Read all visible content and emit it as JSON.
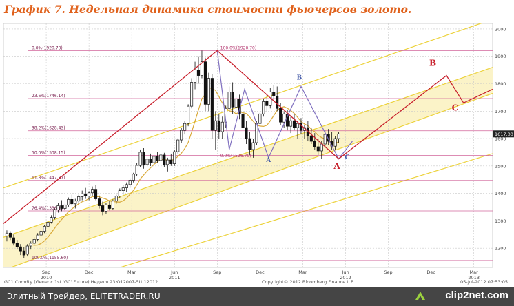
{
  "title": "График 7.   Недельная динамика стоимости фьючерсов золото.",
  "footer": {
    "source_text": "Элитный Трейдер, ELITETRADER.RU",
    "logo_text": "clip2net.com"
  },
  "colors": {
    "title": "#e0611b",
    "channel_fill": "#fbf3c8",
    "channel_line": "#ecd23a",
    "projection": "#c8202c",
    "harmonic": "#7f6fbf",
    "fib_line": "#d2669b",
    "moving_average": "#d9a938",
    "label_red": "#c8202c",
    "label_blue": "#4a5faa"
  },
  "chart_data": {
    "type": "candlestick",
    "instrument_text": "GC1 Comdty (Generic 1st 'GC' Future) Неделя 23Ю12007-5Ш12012",
    "copyright_text": "Copyright© 2012 Bloomberg Finance L.P.",
    "timestamp_text": "05-Jul-2012 07:53:05",
    "last_price_label": "1617.00",
    "y_ticks": [
      1200,
      1300,
      1400,
      1500,
      1600,
      1700,
      1800,
      1900,
      2000
    ],
    "ylim": [
      1130,
      2020
    ],
    "x_months": [
      {
        "label": "Sep",
        "t": 2010.67
      },
      {
        "label": "Dec",
        "t": 2010.92
      },
      {
        "label": "Mar",
        "t": 2011.17
      },
      {
        "label": "Jun",
        "t": 2011.42
      },
      {
        "label": "Sep",
        "t": 2011.67
      },
      {
        "label": "Dec",
        "t": 2011.92
      },
      {
        "label": "Mar",
        "t": 2012.17
      },
      {
        "label": "Jun",
        "t": 2012.42
      },
      {
        "label": "Sep",
        "t": 2012.67
      },
      {
        "label": "Dec",
        "t": 2012.92
      },
      {
        "label": "Mar",
        "t": 2013.17
      }
    ],
    "x_years": [
      {
        "label": "2010",
        "t": 2010.67
      },
      {
        "label": "2011",
        "t": 2011.42
      },
      {
        "label": "2012",
        "t": 2012.42
      },
      {
        "label": "2013",
        "t": 2013.17
      }
    ],
    "xlim": [
      2010.42,
      2013.28
    ],
    "fib_levels": [
      {
        "label": "0.0%(1920.70)",
        "price": 1920.7
      },
      {
        "label": "23.6%(1746.14)",
        "price": 1746.14
      },
      {
        "label": "38.2%(1628.43)",
        "price": 1628.43
      },
      {
        "label": "50.0%(1538.15)",
        "price": 1538.15
      },
      {
        "label": "61.8%(1447.87)",
        "price": 1447.87
      },
      {
        "label": "76.4%(1336.17)",
        "price": 1336.17
      },
      {
        "label": "100.0%(1155.60)",
        "price": 1155.6
      }
    ],
    "retracement_labels": [
      {
        "label": "100.0%(1920.70)",
        "t": 2011.68,
        "price": 1920.7
      },
      {
        "label": "0.0%(1526.70)",
        "t": 2011.68,
        "price": 1526.7
      }
    ],
    "channels": [
      {
        "t1": 2010.42,
        "p1": 1420,
        "t2": 2013.28,
        "p2": 2035
      },
      {
        "t1": 2010.42,
        "p1": 1240,
        "t2": 2013.28,
        "p2": 1860
      },
      {
        "t1": 2010.42,
        "p1": 1120,
        "t2": 2013.28,
        "p2": 1765
      },
      {
        "t1": 2010.42,
        "p1": 1000,
        "t2": 2013.28,
        "p2": 1545
      }
    ],
    "projection_path": [
      {
        "t": 2010.42,
        "p": 1290
      },
      {
        "t": 2011.67,
        "p": 1921
      },
      {
        "t": 2012.38,
        "p": 1526
      },
      {
        "t": 2013.01,
        "p": 1830
      },
      {
        "t": 2013.11,
        "p": 1730
      },
      {
        "t": 2013.28,
        "p": 1780
      }
    ],
    "harmonic_path": [
      {
        "t": 2011.67,
        "p": 1921
      },
      {
        "t": 2011.74,
        "p": 1560
      },
      {
        "t": 2011.83,
        "p": 1780
      },
      {
        "t": 2011.97,
        "p": 1530
      },
      {
        "t": 2012.16,
        "p": 1790
      },
      {
        "t": 2012.38,
        "p": 1526
      },
      {
        "t": 2012.46,
        "p": 1590
      }
    ],
    "points": [
      {
        "label": "A",
        "t": 2011.97,
        "p": 1515,
        "color": "blue"
      },
      {
        "label": "B",
        "t": 2012.15,
        "p": 1815,
        "color": "blue"
      },
      {
        "label": "C",
        "t": 2012.43,
        "p": 1525,
        "color": "blue"
      },
      {
        "label": "A",
        "t": 2012.37,
        "p": 1490,
        "color": "red"
      },
      {
        "label": "B",
        "t": 2012.93,
        "p": 1865,
        "color": "red"
      },
      {
        "label": "C",
        "t": 2013.06,
        "p": 1702,
        "color": "red"
      }
    ],
    "candles": [
      {
        "t": 2010.44,
        "o": 1245,
        "h": 1265,
        "l": 1225,
        "c": 1255
      },
      {
        "t": 2010.46,
        "o": 1255,
        "h": 1262,
        "l": 1230,
        "c": 1240
      },
      {
        "t": 2010.48,
        "o": 1238,
        "h": 1250,
        "l": 1210,
        "c": 1218
      },
      {
        "t": 2010.5,
        "o": 1218,
        "h": 1230,
        "l": 1195,
        "c": 1205
      },
      {
        "t": 2010.52,
        "o": 1205,
        "h": 1215,
        "l": 1175,
        "c": 1190
      },
      {
        "t": 2010.54,
        "o": 1190,
        "h": 1205,
        "l": 1165,
        "c": 1175
      },
      {
        "t": 2010.56,
        "o": 1178,
        "h": 1215,
        "l": 1170,
        "c": 1208
      },
      {
        "t": 2010.58,
        "o": 1208,
        "h": 1225,
        "l": 1195,
        "c": 1218
      },
      {
        "t": 2010.6,
        "o": 1218,
        "h": 1240,
        "l": 1210,
        "c": 1232
      },
      {
        "t": 2010.62,
        "o": 1232,
        "h": 1255,
        "l": 1225,
        "c": 1248
      },
      {
        "t": 2010.64,
        "o": 1248,
        "h": 1270,
        "l": 1240,
        "c": 1262
      },
      {
        "t": 2010.66,
        "o": 1262,
        "h": 1285,
        "l": 1255,
        "c": 1280
      },
      {
        "t": 2010.68,
        "o": 1280,
        "h": 1300,
        "l": 1270,
        "c": 1295
      },
      {
        "t": 2010.7,
        "o": 1295,
        "h": 1320,
        "l": 1290,
        "c": 1312
      },
      {
        "t": 2010.72,
        "o": 1312,
        "h": 1345,
        "l": 1305,
        "c": 1340
      },
      {
        "t": 2010.74,
        "o": 1340,
        "h": 1365,
        "l": 1330,
        "c": 1355
      },
      {
        "t": 2010.76,
        "o": 1355,
        "h": 1375,
        "l": 1335,
        "c": 1345
      },
      {
        "t": 2010.78,
        "o": 1345,
        "h": 1365,
        "l": 1330,
        "c": 1358
      },
      {
        "t": 2010.8,
        "o": 1358,
        "h": 1385,
        "l": 1350,
        "c": 1378
      },
      {
        "t": 2010.82,
        "o": 1378,
        "h": 1395,
        "l": 1355,
        "c": 1362
      },
      {
        "t": 2010.84,
        "o": 1362,
        "h": 1380,
        "l": 1345,
        "c": 1372
      },
      {
        "t": 2010.86,
        "o": 1372,
        "h": 1395,
        "l": 1362,
        "c": 1388
      },
      {
        "t": 2010.88,
        "o": 1388,
        "h": 1410,
        "l": 1375,
        "c": 1398
      },
      {
        "t": 2010.9,
        "o": 1398,
        "h": 1420,
        "l": 1380,
        "c": 1390
      },
      {
        "t": 2010.92,
        "o": 1390,
        "h": 1408,
        "l": 1375,
        "c": 1402
      },
      {
        "t": 2010.94,
        "o": 1402,
        "h": 1425,
        "l": 1390,
        "c": 1415
      },
      {
        "t": 2010.96,
        "o": 1415,
        "h": 1430,
        "l": 1375,
        "c": 1380
      },
      {
        "t": 2010.98,
        "o": 1380,
        "h": 1392,
        "l": 1345,
        "c": 1355
      },
      {
        "t": 2011.0,
        "o": 1355,
        "h": 1370,
        "l": 1320,
        "c": 1335
      },
      {
        "t": 2011.02,
        "o": 1335,
        "h": 1365,
        "l": 1325,
        "c": 1358
      },
      {
        "t": 2011.04,
        "o": 1358,
        "h": 1372,
        "l": 1338,
        "c": 1345
      },
      {
        "t": 2011.06,
        "o": 1345,
        "h": 1378,
        "l": 1340,
        "c": 1372
      },
      {
        "t": 2011.08,
        "o": 1372,
        "h": 1395,
        "l": 1362,
        "c": 1390
      },
      {
        "t": 2011.1,
        "o": 1390,
        "h": 1418,
        "l": 1382,
        "c": 1410
      },
      {
        "t": 2011.12,
        "o": 1410,
        "h": 1430,
        "l": 1395,
        "c": 1420
      },
      {
        "t": 2011.14,
        "o": 1420,
        "h": 1440,
        "l": 1405,
        "c": 1432
      },
      {
        "t": 2011.16,
        "o": 1432,
        "h": 1455,
        "l": 1420,
        "c": 1448
      },
      {
        "t": 2011.18,
        "o": 1448,
        "h": 1475,
        "l": 1440,
        "c": 1470
      },
      {
        "t": 2011.2,
        "o": 1470,
        "h": 1510,
        "l": 1462,
        "c": 1502
      },
      {
        "t": 2011.22,
        "o": 1502,
        "h": 1560,
        "l": 1495,
        "c": 1550
      },
      {
        "t": 2011.24,
        "o": 1550,
        "h": 1565,
        "l": 1490,
        "c": 1505
      },
      {
        "t": 2011.26,
        "o": 1505,
        "h": 1535,
        "l": 1480,
        "c": 1525
      },
      {
        "t": 2011.28,
        "o": 1525,
        "h": 1545,
        "l": 1500,
        "c": 1512
      },
      {
        "t": 2011.3,
        "o": 1512,
        "h": 1540,
        "l": 1505,
        "c": 1535
      },
      {
        "t": 2011.32,
        "o": 1535,
        "h": 1552,
        "l": 1510,
        "c": 1520
      },
      {
        "t": 2011.34,
        "o": 1520,
        "h": 1545,
        "l": 1500,
        "c": 1540
      },
      {
        "t": 2011.36,
        "o": 1540,
        "h": 1548,
        "l": 1495,
        "c": 1505
      },
      {
        "t": 2011.38,
        "o": 1505,
        "h": 1530,
        "l": 1480,
        "c": 1522
      },
      {
        "t": 2011.4,
        "o": 1522,
        "h": 1545,
        "l": 1500,
        "c": 1508
      },
      {
        "t": 2011.42,
        "o": 1508,
        "h": 1560,
        "l": 1500,
        "c": 1552
      },
      {
        "t": 2011.44,
        "o": 1552,
        "h": 1600,
        "l": 1545,
        "c": 1595
      },
      {
        "t": 2011.46,
        "o": 1595,
        "h": 1640,
        "l": 1585,
        "c": 1630
      },
      {
        "t": 2011.48,
        "o": 1630,
        "h": 1665,
        "l": 1615,
        "c": 1655
      },
      {
        "t": 2011.5,
        "o": 1655,
        "h": 1725,
        "l": 1645,
        "c": 1718
      },
      {
        "t": 2011.52,
        "o": 1718,
        "h": 1820,
        "l": 1710,
        "c": 1805
      },
      {
        "t": 2011.54,
        "o": 1805,
        "h": 1880,
        "l": 1780,
        "c": 1850
      },
      {
        "t": 2011.56,
        "o": 1850,
        "h": 1900,
        "l": 1800,
        "c": 1830
      },
      {
        "t": 2011.58,
        "o": 1830,
        "h": 1921,
        "l": 1820,
        "c": 1880
      },
      {
        "t": 2011.6,
        "o": 1880,
        "h": 1895,
        "l": 1700,
        "c": 1725
      },
      {
        "t": 2011.62,
        "o": 1725,
        "h": 1840,
        "l": 1700,
        "c": 1820
      },
      {
        "t": 2011.64,
        "o": 1820,
        "h": 1835,
        "l": 1600,
        "c": 1630
      },
      {
        "t": 2011.66,
        "o": 1630,
        "h": 1700,
        "l": 1560,
        "c": 1665
      },
      {
        "t": 2011.68,
        "o": 1665,
        "h": 1690,
        "l": 1600,
        "c": 1625
      },
      {
        "t": 2011.7,
        "o": 1625,
        "h": 1680,
        "l": 1600,
        "c": 1660
      },
      {
        "t": 2011.72,
        "o": 1660,
        "h": 1720,
        "l": 1640,
        "c": 1710
      },
      {
        "t": 2011.74,
        "o": 1710,
        "h": 1790,
        "l": 1700,
        "c": 1770
      },
      {
        "t": 2011.76,
        "o": 1770,
        "h": 1805,
        "l": 1690,
        "c": 1715
      },
      {
        "t": 2011.78,
        "o": 1715,
        "h": 1755,
        "l": 1680,
        "c": 1745
      },
      {
        "t": 2011.8,
        "o": 1745,
        "h": 1760,
        "l": 1670,
        "c": 1690
      },
      {
        "t": 2011.82,
        "o": 1690,
        "h": 1730,
        "l": 1620,
        "c": 1640
      },
      {
        "t": 2011.84,
        "o": 1640,
        "h": 1665,
        "l": 1580,
        "c": 1600
      },
      {
        "t": 2011.86,
        "o": 1600,
        "h": 1625,
        "l": 1540,
        "c": 1560
      },
      {
        "t": 2011.88,
        "o": 1560,
        "h": 1600,
        "l": 1530,
        "c": 1585
      },
      {
        "t": 2011.9,
        "o": 1585,
        "h": 1665,
        "l": 1575,
        "c": 1655
      },
      {
        "t": 2011.92,
        "o": 1655,
        "h": 1700,
        "l": 1635,
        "c": 1690
      },
      {
        "t": 2011.94,
        "o": 1690,
        "h": 1745,
        "l": 1680,
        "c": 1735
      },
      {
        "t": 2011.96,
        "o": 1735,
        "h": 1760,
        "l": 1700,
        "c": 1720
      },
      {
        "t": 2011.98,
        "o": 1720,
        "h": 1785,
        "l": 1710,
        "c": 1770
      },
      {
        "t": 2012.0,
        "o": 1770,
        "h": 1795,
        "l": 1740,
        "c": 1755
      },
      {
        "t": 2012.02,
        "o": 1755,
        "h": 1790,
        "l": 1700,
        "c": 1710
      },
      {
        "t": 2012.04,
        "o": 1710,
        "h": 1730,
        "l": 1650,
        "c": 1660
      },
      {
        "t": 2012.06,
        "o": 1660,
        "h": 1700,
        "l": 1640,
        "c": 1690
      },
      {
        "t": 2012.08,
        "o": 1690,
        "h": 1705,
        "l": 1630,
        "c": 1645
      },
      {
        "t": 2012.1,
        "o": 1645,
        "h": 1680,
        "l": 1620,
        "c": 1665
      },
      {
        "t": 2012.12,
        "o": 1665,
        "h": 1690,
        "l": 1630,
        "c": 1640
      },
      {
        "t": 2012.14,
        "o": 1640,
        "h": 1665,
        "l": 1600,
        "c": 1655
      },
      {
        "t": 2012.16,
        "o": 1655,
        "h": 1675,
        "l": 1615,
        "c": 1630
      },
      {
        "t": 2012.18,
        "o": 1630,
        "h": 1650,
        "l": 1600,
        "c": 1640
      },
      {
        "t": 2012.2,
        "o": 1640,
        "h": 1665,
        "l": 1590,
        "c": 1610
      },
      {
        "t": 2012.22,
        "o": 1610,
        "h": 1640,
        "l": 1580,
        "c": 1590
      },
      {
        "t": 2012.24,
        "o": 1590,
        "h": 1620,
        "l": 1560,
        "c": 1570
      },
      {
        "t": 2012.26,
        "o": 1570,
        "h": 1600,
        "l": 1540,
        "c": 1555
      },
      {
        "t": 2012.28,
        "o": 1555,
        "h": 1590,
        "l": 1526,
        "c": 1580
      },
      {
        "t": 2012.3,
        "o": 1580,
        "h": 1630,
        "l": 1565,
        "c": 1615
      },
      {
        "t": 2012.32,
        "o": 1615,
        "h": 1635,
        "l": 1575,
        "c": 1590
      },
      {
        "t": 2012.34,
        "o": 1590,
        "h": 1625,
        "l": 1560,
        "c": 1572
      },
      {
        "t": 2012.36,
        "o": 1572,
        "h": 1610,
        "l": 1560,
        "c": 1600
      },
      {
        "t": 2012.38,
        "o": 1600,
        "h": 1625,
        "l": 1585,
        "c": 1617
      }
    ]
  }
}
